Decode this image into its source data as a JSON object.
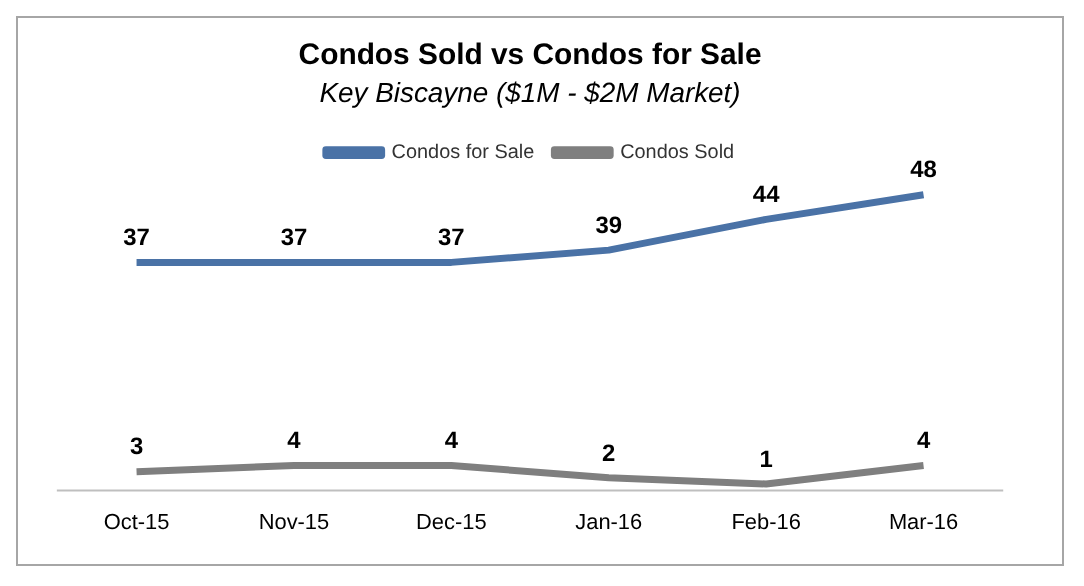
{
  "chart_data": {
    "type": "line",
    "title": "Condos Sold vs Condos for Sale",
    "subtitle": "Key Biscayne ($1M - $2M Market)",
    "categories": [
      "Oct-15",
      "Nov-15",
      "Dec-15",
      "Jan-16",
      "Feb-16",
      "Mar-16"
    ],
    "series": [
      {
        "name": "Condos for Sale",
        "color": "#4a72a6",
        "values": [
          37,
          37,
          37,
          39,
          44,
          48
        ]
      },
      {
        "name": "Condos Sold",
        "color": "#7f7f7f",
        "values": [
          3,
          4,
          4,
          2,
          1,
          4
        ]
      }
    ],
    "data_labels": true,
    "legend": "top",
    "grid": false,
    "marker": "none",
    "tick_labels": "x"
  }
}
